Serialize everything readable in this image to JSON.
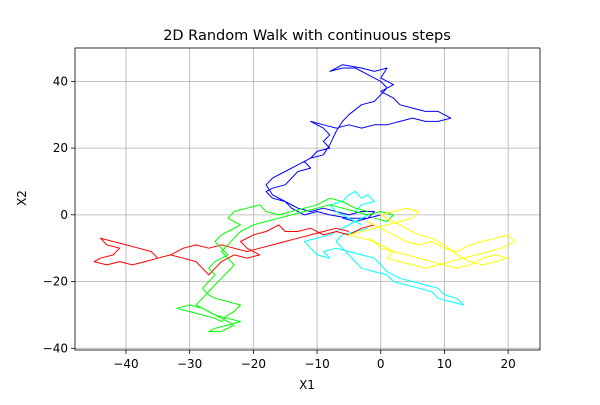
{
  "chart_data": {
    "type": "line",
    "title": "2D Random Walk with continuous steps",
    "xlabel": "X1",
    "ylabel": "X2",
    "xlim": [
      -48,
      25
    ],
    "ylim": [
      -40.5,
      50
    ],
    "x_ticks": [
      -40,
      -30,
      -20,
      -10,
      0,
      10,
      20
    ],
    "y_ticks": [
      -40,
      -20,
      0,
      20,
      40
    ],
    "x_tick_labels": [
      "−40",
      "−30",
      "−20",
      "−10",
      "0",
      "10",
      "20"
    ],
    "y_tick_labels": [
      "−40",
      "−20",
      "0",
      "20",
      "40"
    ],
    "grid": true,
    "series": [
      {
        "color": "#0000ff",
        "points": [
          [
            0,
            0
          ],
          [
            -2,
            -1
          ],
          [
            -5,
            -1
          ],
          [
            -8,
            0
          ],
          [
            -10,
            1
          ],
          [
            -12,
            0
          ],
          [
            -14,
            2
          ],
          [
            -15,
            4
          ],
          [
            -17,
            6
          ],
          [
            -18,
            9
          ],
          [
            -17,
            11
          ],
          [
            -15,
            13
          ],
          [
            -13,
            15
          ],
          [
            -11,
            17
          ],
          [
            -9,
            18
          ],
          [
            -8,
            21
          ],
          [
            -7,
            25
          ],
          [
            -6,
            28
          ],
          [
            -5,
            30
          ],
          [
            -3,
            33
          ],
          [
            -1,
            34
          ],
          [
            0,
            36
          ],
          [
            1,
            38
          ],
          [
            0,
            40
          ],
          [
            -2,
            42
          ],
          [
            -4,
            44
          ],
          [
            -6,
            44
          ],
          [
            -8,
            43
          ],
          [
            -6,
            45
          ],
          [
            -3,
            44
          ],
          [
            -1,
            43
          ],
          [
            1,
            44
          ],
          [
            0,
            41
          ],
          [
            2,
            39
          ],
          [
            0,
            37
          ],
          [
            2,
            35
          ],
          [
            3,
            33
          ],
          [
            5,
            32
          ],
          [
            7,
            31
          ],
          [
            9,
            31
          ],
          [
            11,
            29
          ],
          [
            9,
            28
          ],
          [
            7,
            28
          ],
          [
            5,
            29
          ],
          [
            3,
            28
          ],
          [
            1,
            27
          ],
          [
            -1,
            27
          ],
          [
            -3,
            26
          ],
          [
            -5,
            27
          ],
          [
            -7,
            26
          ],
          [
            -9,
            27
          ],
          [
            -11,
            28
          ],
          [
            -9,
            26
          ],
          [
            -8,
            24
          ],
          [
            -9,
            22
          ],
          [
            -8,
            20
          ],
          [
            -10,
            19
          ],
          [
            -11,
            17
          ],
          [
            -12,
            16
          ],
          [
            -11,
            14
          ],
          [
            -13,
            13
          ],
          [
            -14,
            11
          ],
          [
            -15,
            9
          ],
          [
            -17,
            8
          ],
          [
            -18,
            7
          ],
          [
            -17,
            5
          ],
          [
            -15,
            4
          ],
          [
            -13,
            2
          ],
          [
            -11,
            1
          ],
          [
            -9,
            2
          ],
          [
            -7,
            1
          ],
          [
            -5,
            0
          ],
          [
            -3,
            1
          ],
          [
            -1,
            1
          ],
          [
            -2,
            -1
          ],
          [
            -4,
            -2
          ],
          [
            -6,
            -1
          ]
        ]
      },
      {
        "color": "#00ffff",
        "points": [
          [
            -3,
            -3
          ],
          [
            -5,
            -1
          ],
          [
            -7,
            1
          ],
          [
            -8,
            3
          ],
          [
            -6,
            4
          ],
          [
            -5,
            6
          ],
          [
            -4,
            7
          ],
          [
            -3,
            5
          ],
          [
            -2,
            6
          ],
          [
            -1,
            4
          ],
          [
            -3,
            3
          ],
          [
            -4,
            1
          ],
          [
            -2,
            0
          ],
          [
            -4,
            -2
          ],
          [
            -6,
            -4
          ],
          [
            -8,
            -6
          ],
          [
            -10,
            -7
          ],
          [
            -12,
            -8
          ],
          [
            -11,
            -10
          ],
          [
            -10,
            -12
          ],
          [
            -8,
            -13
          ],
          [
            -9,
            -11
          ],
          [
            -7,
            -10
          ],
          [
            -5,
            -11
          ],
          [
            -3,
            -12
          ],
          [
            -1,
            -13
          ],
          [
            0,
            -15
          ],
          [
            1,
            -17
          ],
          [
            3,
            -19
          ],
          [
            5,
            -20
          ],
          [
            7,
            -21
          ],
          [
            9,
            -22
          ],
          [
            10,
            -24
          ],
          [
            12,
            -25
          ],
          [
            13,
            -27
          ],
          [
            11,
            -26
          ],
          [
            9,
            -25
          ],
          [
            8,
            -23
          ],
          [
            6,
            -22
          ],
          [
            4,
            -21
          ],
          [
            2,
            -20
          ],
          [
            1,
            -18
          ],
          [
            -1,
            -17
          ],
          [
            -3,
            -16
          ],
          [
            -4,
            -14
          ],
          [
            -5,
            -12
          ],
          [
            -6,
            -10
          ],
          [
            -7,
            -8
          ],
          [
            -6,
            -6
          ],
          [
            -4,
            -5
          ],
          [
            -2,
            -4
          ]
        ]
      },
      {
        "color": "#ff0000",
        "points": [
          [
            -1,
            -3
          ],
          [
            -3,
            -4
          ],
          [
            -5,
            -6
          ],
          [
            -7,
            -5
          ],
          [
            -9,
            -6
          ],
          [
            -11,
            -4
          ],
          [
            -13,
            -5
          ],
          [
            -15,
            -5
          ],
          [
            -16,
            -3
          ],
          [
            -18,
            -5
          ],
          [
            -20,
            -6
          ],
          [
            -22,
            -8
          ],
          [
            -21,
            -10
          ],
          [
            -19,
            -12
          ],
          [
            -21,
            -13
          ],
          [
            -23,
            -12
          ],
          [
            -25,
            -14
          ],
          [
            -26,
            -16
          ],
          [
            -27,
            -18
          ],
          [
            -28,
            -16
          ],
          [
            -29,
            -14
          ],
          [
            -31,
            -13
          ],
          [
            -33,
            -12
          ],
          [
            -35,
            -13
          ],
          [
            -36,
            -11
          ],
          [
            -38,
            -10
          ],
          [
            -40,
            -9
          ],
          [
            -42,
            -8
          ],
          [
            -44,
            -7
          ],
          [
            -43,
            -9
          ],
          [
            -41,
            -10
          ],
          [
            -42,
            -12
          ],
          [
            -44,
            -13
          ],
          [
            -45,
            -14
          ],
          [
            -43,
            -15
          ],
          [
            -41,
            -14
          ],
          [
            -39,
            -15
          ],
          [
            -37,
            -14
          ],
          [
            -35,
            -13
          ],
          [
            -33,
            -12
          ],
          [
            -31,
            -10
          ],
          [
            -29,
            -9
          ],
          [
            -27,
            -10
          ],
          [
            -25,
            -9
          ],
          [
            -23,
            -10
          ],
          [
            -21,
            -11
          ],
          [
            -19,
            -10
          ],
          [
            -17,
            -9
          ],
          [
            -15,
            -8
          ],
          [
            -13,
            -7
          ],
          [
            -11,
            -6
          ],
          [
            -9,
            -5
          ],
          [
            -7,
            -4
          ],
          [
            -5,
            -5
          ]
        ]
      },
      {
        "color": "#00ff00",
        "points": [
          [
            -2,
            1
          ],
          [
            -4,
            2
          ],
          [
            -6,
            4
          ],
          [
            -8,
            5
          ],
          [
            -10,
            3
          ],
          [
            -12,
            2
          ],
          [
            -14,
            1
          ],
          [
            -16,
            0
          ],
          [
            -18,
            1
          ],
          [
            -19,
            3
          ],
          [
            -21,
            2
          ],
          [
            -23,
            1
          ],
          [
            -24,
            -1
          ],
          [
            -22,
            -3
          ],
          [
            -24,
            -5
          ],
          [
            -25,
            -6
          ],
          [
            -26,
            -8
          ],
          [
            -25,
            -10
          ],
          [
            -24,
            -12
          ],
          [
            -26,
            -14
          ],
          [
            -27,
            -16
          ],
          [
            -26,
            -18
          ],
          [
            -27,
            -20
          ],
          [
            -28,
            -22
          ],
          [
            -27,
            -24
          ],
          [
            -26,
            -25
          ],
          [
            -24,
            -26
          ],
          [
            -22,
            -27
          ],
          [
            -23,
            -29
          ],
          [
            -24,
            -30
          ],
          [
            -25,
            -32
          ],
          [
            -26,
            -31
          ],
          [
            -28,
            -30
          ],
          [
            -30,
            -29
          ],
          [
            -32,
            -28
          ],
          [
            -30,
            -27
          ],
          [
            -28,
            -28
          ],
          [
            -26,
            -30
          ],
          [
            -24,
            -31
          ],
          [
            -22,
            -32
          ],
          [
            -24,
            -33
          ],
          [
            -26,
            -34
          ],
          [
            -27,
            -35
          ],
          [
            -25,
            -35
          ],
          [
            -23,
            -33
          ],
          [
            -25,
            -31
          ],
          [
            -27,
            -29
          ],
          [
            -29,
            -27
          ],
          [
            -28,
            -25
          ],
          [
            -27,
            -23
          ],
          [
            -26,
            -21
          ],
          [
            -25,
            -19
          ],
          [
            -24,
            -17
          ],
          [
            -23,
            -15
          ],
          [
            -24,
            -13
          ],
          [
            -25,
            -11
          ],
          [
            -24,
            -9
          ],
          [
            -23,
            -7
          ],
          [
            -22,
            -5
          ],
          [
            -20,
            -3
          ],
          [
            -18,
            -2
          ],
          [
            -16,
            -1
          ],
          [
            -14,
            0
          ],
          [
            -12,
            1
          ],
          [
            -10,
            2
          ],
          [
            -8,
            3
          ],
          [
            -6,
            2
          ],
          [
            -4,
            1
          ],
          [
            -2,
            0
          ],
          [
            0,
            1
          ],
          [
            2,
            0
          ],
          [
            1,
            -2
          ],
          [
            -1,
            -1
          ]
        ]
      },
      {
        "color": "#ffff00",
        "points": [
          [
            -2,
            -2
          ],
          [
            0,
            -4
          ],
          [
            2,
            -6
          ],
          [
            4,
            -8
          ],
          [
            6,
            -9
          ],
          [
            8,
            -8
          ],
          [
            10,
            -10
          ],
          [
            12,
            -11
          ],
          [
            14,
            -9
          ],
          [
            16,
            -8
          ],
          [
            18,
            -7
          ],
          [
            20,
            -6
          ],
          [
            21,
            -8
          ],
          [
            19,
            -10
          ],
          [
            17,
            -11
          ],
          [
            15,
            -12
          ],
          [
            13,
            -13
          ],
          [
            11,
            -14
          ],
          [
            9,
            -15
          ],
          [
            7,
            -16
          ],
          [
            5,
            -15
          ],
          [
            3,
            -14
          ],
          [
            1,
            -13
          ],
          [
            2,
            -11
          ],
          [
            0,
            -10
          ],
          [
            -1,
            -8
          ],
          [
            -3,
            -7
          ],
          [
            -5,
            -6
          ],
          [
            -3,
            -5
          ],
          [
            -1,
            -4
          ],
          [
            1,
            -3
          ],
          [
            3,
            -2
          ],
          [
            5,
            -1
          ],
          [
            6,
            1
          ],
          [
            4,
            2
          ],
          [
            2,
            1
          ],
          [
            0,
            0
          ],
          [
            2,
            -2
          ],
          [
            4,
            -4
          ],
          [
            6,
            -6
          ],
          [
            8,
            -7
          ],
          [
            10,
            -9
          ],
          [
            12,
            -12
          ],
          [
            14,
            -14
          ],
          [
            16,
            -15
          ],
          [
            18,
            -14
          ],
          [
            20,
            -13
          ],
          [
            18,
            -12
          ],
          [
            16,
            -13
          ],
          [
            14,
            -15
          ],
          [
            12,
            -16
          ],
          [
            10,
            -15
          ],
          [
            8,
            -14
          ],
          [
            6,
            -13
          ],
          [
            4,
            -12
          ],
          [
            2,
            -11
          ],
          [
            0,
            -9
          ],
          [
            -2,
            -7
          ]
        ]
      }
    ]
  }
}
